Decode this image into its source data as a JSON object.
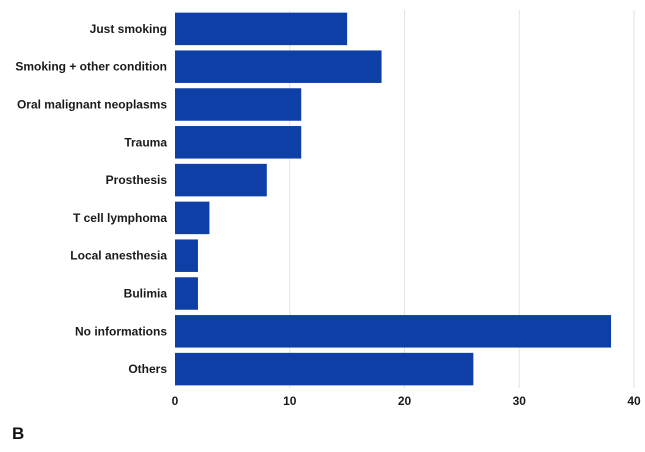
{
  "panel_label": "B",
  "colors": {
    "bar": "#0d3fa6",
    "grid": "#e3e3e3",
    "text": "#1a1a1a"
  },
  "chart_data": {
    "type": "bar",
    "orientation": "horizontal",
    "categories": [
      "Just smoking",
      "Smoking + other condition",
      "Oral malignant neoplasms",
      "Trauma",
      "Prosthesis",
      "T cell lymphoma",
      "Local anesthesia",
      "Bulimia",
      "No informations",
      "Others"
    ],
    "values": [
      15,
      18,
      11,
      11,
      8,
      3,
      2,
      2,
      38,
      26
    ],
    "xlim": [
      0,
      40
    ],
    "xticks": [
      0,
      10,
      20,
      30,
      40
    ],
    "grid": "vertical",
    "title": "",
    "xlabel": "",
    "ylabel": ""
  }
}
